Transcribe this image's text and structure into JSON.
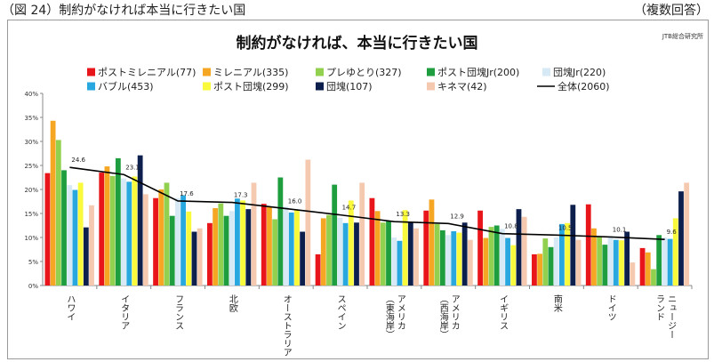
{
  "caption": "（図 24）制約がなければ本当に行きたい国",
  "caption_right": "（複数回答）",
  "source": "JTB総合研究所",
  "chart_data": {
    "type": "bar",
    "title": "制約がなければ、本当に行きたい国",
    "ylim": [
      0,
      40
    ],
    "yticks": [
      "0%",
      "5%",
      "10%",
      "15%",
      "20%",
      "25%",
      "30%",
      "35%",
      "40%"
    ],
    "grid": false,
    "legend_position": "top",
    "categories": [
      [
        "ハワイ"
      ],
      [
        "イタリア"
      ],
      [
        "フランス"
      ],
      [
        "北欧"
      ],
      [
        "オーストラリア"
      ],
      [
        "スペイン"
      ],
      [
        "アメリカ",
        "（東海岸）"
      ],
      [
        "アメリカ",
        "（西海岸）"
      ],
      [
        "イギリス"
      ],
      [
        "南米"
      ],
      [
        "ドイツ"
      ],
      [
        "ニュージー",
        "ランド"
      ]
    ],
    "series": [
      {
        "name": "ポストミレニアル(77)",
        "color": "#e8161b",
        "values": [
          23.4,
          23.5,
          18.2,
          13.0,
          17.0,
          6.5,
          18.2,
          15.6,
          15.6,
          6.5,
          16.9,
          7.8
        ]
      },
      {
        "name": "ミレニアル(335)",
        "color": "#f5a623",
        "values": [
          34.3,
          24.8,
          20.0,
          16.1,
          16.4,
          14.0,
          15.5,
          17.9,
          9.9,
          6.6,
          11.9,
          6.9
        ]
      },
      {
        "name": "プレゆとり(327)",
        "color": "#92d050",
        "values": [
          30.3,
          22.8,
          21.4,
          17.1,
          13.8,
          14.7,
          13.1,
          12.8,
          12.2,
          9.8,
          10.1,
          3.4
        ]
      },
      {
        "name": "ポスト団塊Jr(200)",
        "color": "#1e9e3f",
        "values": [
          24.0,
          26.5,
          14.5,
          14.5,
          22.5,
          21.0,
          13.5,
          11.5,
          12.5,
          8.0,
          8.5,
          10.5
        ]
      },
      {
        "name": "団塊Jr(220)",
        "color": "#d6e9f5",
        "values": [
          20.9,
          22.3,
          18.2,
          15.5,
          16.4,
          14.1,
          10.0,
          10.5,
          11.8,
          10.0,
          10.0,
          10.0
        ]
      },
      {
        "name": "バブル(453)",
        "color": "#29a8e0",
        "values": [
          19.9,
          21.6,
          18.8,
          18.1,
          15.2,
          13.0,
          9.3,
          11.3,
          9.9,
          12.8,
          9.5,
          9.7
        ]
      },
      {
        "name": "ポスト団塊(299)",
        "color": "#fafa3c",
        "values": [
          21.4,
          22.7,
          15.4,
          17.7,
          15.7,
          17.7,
          15.7,
          11.0,
          8.4,
          13.0,
          9.4,
          14.0
        ]
      },
      {
        "name": "団塊(107)",
        "color": "#0d1f4d",
        "values": [
          12.1,
          27.1,
          11.2,
          15.9,
          11.2,
          13.1,
          13.1,
          13.1,
          15.9,
          16.8,
          11.2,
          19.6
        ]
      },
      {
        "name": "キネマ(42)",
        "color": "#f5c9b0",
        "values": [
          16.7,
          19.0,
          11.9,
          21.4,
          26.2,
          21.4,
          11.9,
          9.5,
          14.3,
          9.5,
          4.8,
          21.4
        ]
      }
    ],
    "overall": {
      "name": "全体(2060)",
      "color": "#000000",
      "values": [
        24.6,
        23.1,
        17.6,
        17.3,
        16.0,
        14.7,
        13.3,
        12.9,
        10.8,
        10.5,
        10.1,
        9.6
      ],
      "labels": [
        "24.6",
        "23.1",
        "17.6",
        "17.3",
        "16.0",
        "14.7",
        "13.3",
        "12.9",
        "10.8",
        "10.5",
        "10.1",
        "9.6"
      ]
    }
  }
}
